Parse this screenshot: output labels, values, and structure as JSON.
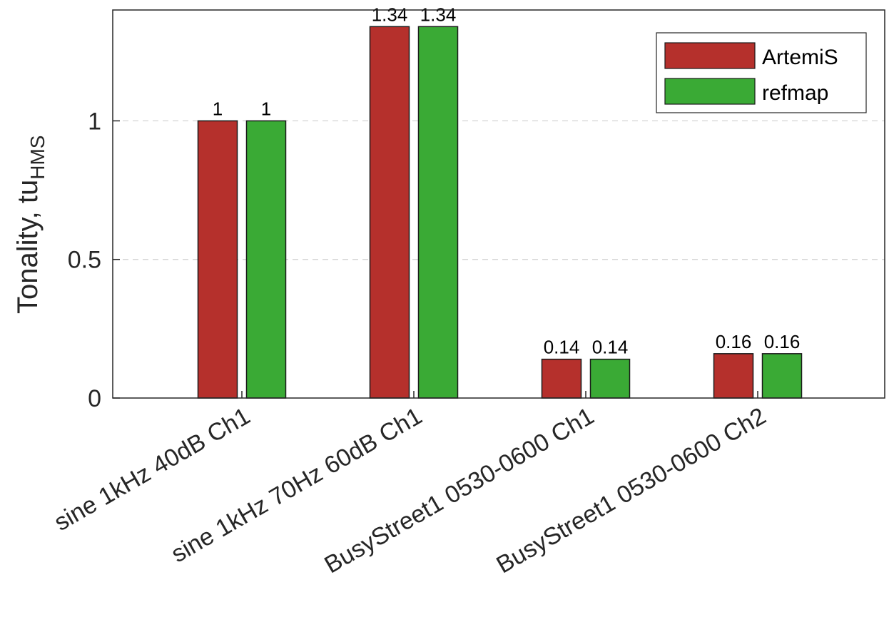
{
  "chart_data": {
    "type": "bar",
    "categories": [
      "sine 1kHz 40dB Ch1",
      "sine 1kHz 70Hz 60dB Ch1",
      "BusyStreet1 0530-0600 Ch1",
      "BusyStreet1 0530-0600 Ch2"
    ],
    "series": [
      {
        "name": "ArtemiS",
        "values": [
          1,
          1.34,
          0.14,
          0.16
        ],
        "labels": [
          "1",
          "1.34",
          "0.14",
          "0.16"
        ],
        "color": "#B5302C"
      },
      {
        "name": "refmap",
        "values": [
          1,
          1.34,
          0.14,
          0.16
        ],
        "labels": [
          "1",
          "1.34",
          "0.14",
          "0.16"
        ],
        "color": "#3AAA35"
      }
    ],
    "ylabel": "Tonality, tu",
    "ylabel_subscript": "HMS",
    "xlabel": "",
    "ylim": [
      0,
      1.4
    ],
    "yticks": [
      0,
      0.5,
      1
    ],
    "ytick_labels": [
      "0",
      "0.5",
      "1"
    ],
    "grid": "horizontal dashed",
    "legend_position": "top-right"
  }
}
